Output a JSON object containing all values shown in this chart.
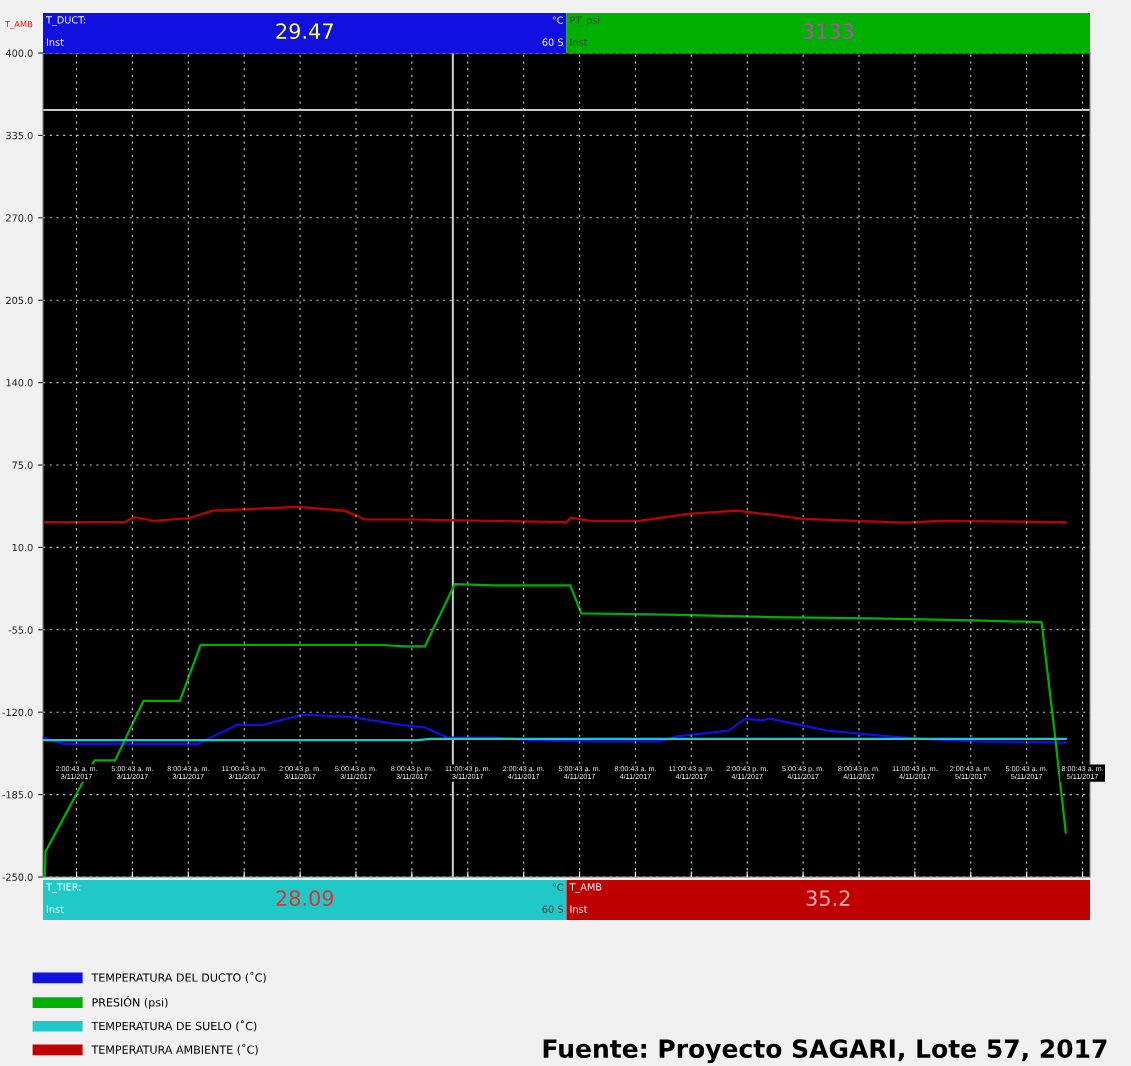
{
  "chart_data": {
    "type": "line",
    "xlim": [
      "2017-11-03T00:12",
      "2017-11-05T08:24"
    ],
    "ylim": [
      -250,
      400
    ],
    "xticks": [
      {
        "value": "2017-11-03T02:00",
        "label": "2:00:43 a. m.\n3/11/2017"
      },
      {
        "value": "2017-11-03T05:00",
        "label": "5:00:43 a. m.\n3/11/2017"
      },
      {
        "value": "2017-11-03T08:00",
        "label": "8:00:43 a. m.\n3/11/2017"
      },
      {
        "value": "2017-11-03T11:00",
        "label": "11:00:43 a. m.\n3/11/2017"
      },
      {
        "value": "2017-11-03T14:00",
        "label": "2:00:43 p. m.\n3/11/2017"
      },
      {
        "value": "2017-11-03T17:00",
        "label": "5:00:43 p. m.\n3/11/2017"
      },
      {
        "value": "2017-11-03T20:00",
        "label": "8:00:43 p. m.\n3/11/2017"
      },
      {
        "value": "2017-11-03T23:00",
        "label": "11:00:43 p. m.\n3/11/2017"
      },
      {
        "value": "2017-11-04T02:00",
        "label": "2:00:43 a. m.\n4/11/2017"
      },
      {
        "value": "2017-11-04T05:00",
        "label": "5:00:43 a. m.\n4/11/2017"
      },
      {
        "value": "2017-11-04T08:00",
        "label": "8:00:43 a. m.\n4/11/2017"
      },
      {
        "value": "2017-11-04T11:00",
        "label": "11:00:43 a. m.\n4/11/2017"
      },
      {
        "value": "2017-11-04T14:00",
        "label": "2:00:43 p. m.\n4/11/2017"
      },
      {
        "value": "2017-11-04T17:00",
        "label": "5:00:43 p. m.\n4/11/2017"
      },
      {
        "value": "2017-11-04T20:00",
        "label": "8:00:43 p. m.\n4/11/2017"
      },
      {
        "value": "2017-11-04T23:00",
        "label": "11:00:43 p. m.\n4/11/2017"
      },
      {
        "value": "2017-11-05T02:00",
        "label": "2:00:43 a. m.\n5/11/2017"
      },
      {
        "value": "2017-11-05T05:00",
        "label": "5:00:43 a. m.\n5/11/2017"
      },
      {
        "value": "2017-11-05T08:00",
        "label": "8:00:43 a. m.\n5/11/2017"
      }
    ],
    "yticks": [
      {
        "value": 400,
        "label": "400.0"
      },
      {
        "value": 335,
        "label": "335.0"
      },
      {
        "value": 270,
        "label": "270.0"
      },
      {
        "value": 205,
        "label": "205.0"
      },
      {
        "value": 140,
        "label": "140.0"
      },
      {
        "value": 75,
        "label": "75.0"
      },
      {
        "value": 10,
        "label": "10.0"
      },
      {
        "value": -55,
        "label": "-55.0"
      },
      {
        "value": -120,
        "label": "-120.0"
      },
      {
        "value": -185,
        "label": "-185.0"
      },
      {
        "value": -250,
        "label": "-250.0"
      }
    ],
    "grid": true,
    "legend": "bottom left",
    "line_style": "solid",
    "series": [
      {
        "name": "TEMPERATURA DEL DUCTO (˚C)",
        "color": "#1010e0",
        "x": [
          "2017-11-03T00:12",
          "2017-11-03T01:18",
          "2017-11-03T08:30",
          "2017-11-03T10:36",
          "2017-11-03T12:00",
          "2017-11-03T14:06",
          "2017-11-03T16:36",
          "2017-11-03T19:24",
          "2017-11-03T20:42",
          "2017-11-03T21:54",
          "2017-11-04T00:24",
          "2017-11-04T02:30",
          "2017-11-04T05:06",
          "2017-11-04T09:18",
          "2017-11-04T10:12",
          "2017-11-04T13:00",
          "2017-11-04T13:54",
          "2017-11-04T14:48",
          "2017-11-04T15:12",
          "2017-11-04T18:18",
          "2017-11-04T21:36",
          "2017-11-04T23:30",
          "2017-11-05T02:12",
          "2017-11-05T07:06"
        ],
        "values": [
          -140,
          -145,
          -145,
          -130,
          -130,
          -122,
          -123.5,
          -130,
          -132,
          -140,
          -140,
          -142,
          -143,
          -143,
          -139,
          -134.5,
          -125,
          -126.5,
          -125,
          -134.5,
          -139,
          -141,
          -143,
          -144
        ]
      },
      {
        "name": "PRESIÓN (psi)",
        "color": "#00b000",
        "x": [
          "2017-11-03T00:18",
          "2017-11-03T00:20",
          "2017-11-03T02:58",
          "2017-11-03T04:04",
          "2017-11-03T05:36",
          "2017-11-03T07:33",
          "2017-11-03T08:39",
          "2017-11-03T18:24",
          "2017-11-03T19:36",
          "2017-11-03T20:42",
          "2017-11-03T22:18",
          "2017-11-04T00:24",
          "2017-11-04T04:30",
          "2017-11-04T05:06",
          "2017-11-04T09:42",
          "2017-11-04T15:12",
          "2017-11-04T20:42",
          "2017-11-05T02:12",
          "2017-11-05T05:48",
          "2017-11-05T06:30",
          "2017-11-05T07:06"
        ],
        "values": [
          -250,
          -230,
          -158,
          -158,
          -111,
          -111,
          -67,
          -67,
          -68,
          -68,
          -19,
          -20,
          -20,
          -42,
          -43,
          -45,
          -46,
          -47.5,
          -49,
          -136,
          -215
        ]
      },
      {
        "name": "TEMPERATURA DE SUELO (˚C)",
        "color": "#20c8c8",
        "x": [
          "2017-11-03T00:12",
          "2017-11-03T20:18",
          "2017-11-03T21:00",
          "2017-11-05T07:06"
        ],
        "values": [
          -142,
          -142,
          -141,
          -141
        ]
      },
      {
        "name": "TEMPERATURA AMBIENTE (˚C)",
        "color": "#c00000",
        "x": [
          "2017-11-03T00:12",
          "2017-11-03T04:36",
          "2017-11-03T05:06",
          "2017-11-03T06:06",
          "2017-11-03T08:00",
          "2017-11-03T09:18",
          "2017-11-03T11:00",
          "2017-11-03T13:54",
          "2017-11-03T16:24",
          "2017-11-03T17:30",
          "2017-11-03T20:00",
          "2017-11-04T00:12",
          "2017-11-04T04:18",
          "2017-11-04T04:30",
          "2017-11-04T05:36",
          "2017-11-04T08:12",
          "2017-11-04T10:48",
          "2017-11-04T13:24",
          "2017-11-04T15:12",
          "2017-11-04T17:00",
          "2017-11-04T19:48",
          "2017-11-04T22:30",
          "2017-11-05T00:24",
          "2017-11-05T07:06"
        ],
        "values": [
          30,
          30,
          34,
          31,
          33,
          39,
          40,
          42,
          39,
          32,
          32,
          31,
          30,
          33.5,
          31,
          31,
          36.5,
          39,
          36,
          32.5,
          31,
          29.5,
          31,
          30
        ]
      }
    ],
    "ref_lines": [
      {
        "axis": "y",
        "value": 355,
        "color": "#c8c8c8"
      },
      {
        "axis": "x",
        "value": "2017-11-03T22:12",
        "color": "#c8c8c8"
      }
    ],
    "annotations": [
      "T_AMB",
      "T_DUCT:",
      "Inst",
      "29.47",
      "°C",
      "60 S",
      "PT_psi",
      "Inst",
      "3133",
      "T_TIER:",
      "Inst",
      "28.09",
      "°C",
      "60 S",
      "T_AMB",
      "Inst",
      "35.2",
      "Fuente: Proyecto SAGARI, Lote 57, 2017"
    ]
  }
}
